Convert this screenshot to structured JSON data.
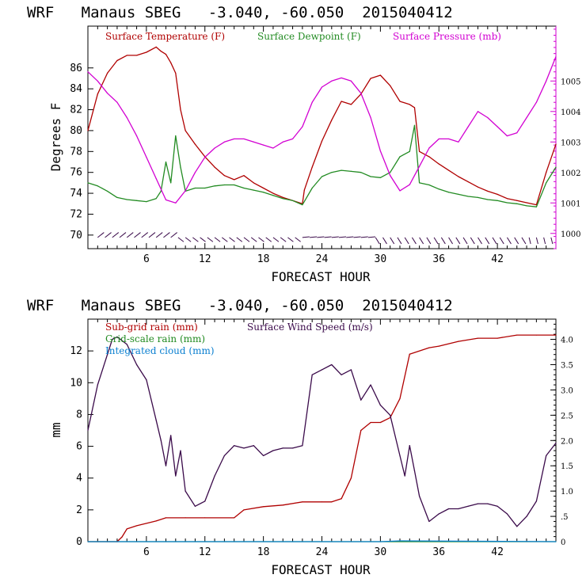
{
  "chart_data": [
    {
      "type": "line",
      "title": "WRF   Manaus SBEG   -3.040, -60.050  2015040412",
      "xlabel": "FORECAST HOUR",
      "ylabel": "Degrees F",
      "xlim": [
        0,
        48
      ],
      "ylim": [
        68.7,
        90
      ],
      "y2lim": [
        999.5,
        1006.8
      ],
      "xticks": [
        6,
        12,
        18,
        24,
        30,
        36,
        42
      ],
      "xtick_labels": [
        "6",
        "12",
        "18",
        "24",
        "30",
        "36",
        "42"
      ],
      "yticks": [
        70,
        72,
        74,
        76,
        78,
        80,
        82,
        84,
        86
      ],
      "ytick_labels": [
        "70",
        "72",
        "74",
        "76",
        "78",
        "80",
        "82",
        "84",
        "86"
      ],
      "y2ticks": [
        1000,
        1001,
        1002,
        1003,
        1004,
        1005
      ],
      "y2tick_labels": [
        "1000",
        "1001",
        "1002",
        "1003",
        "1004",
        "1005"
      ],
      "wind_barbs_row": "along bottom at ~70 F",
      "series": [
        {
          "name": "Surface Temperature (F)",
          "color": "#b00000",
          "axis": "left",
          "x": [
            0,
            1,
            2,
            3,
            4,
            5,
            6,
            7,
            7.5,
            8,
            8.5,
            9,
            9.5,
            10,
            11,
            12,
            13,
            14,
            15,
            16,
            17,
            18,
            19,
            20,
            21,
            22,
            22.2,
            23,
            24,
            25,
            26,
            27,
            28,
            29,
            30,
            31,
            32,
            33,
            33.5,
            34,
            35,
            36,
            37,
            38,
            39,
            40,
            41,
            42,
            43,
            44,
            45,
            46,
            47,
            48
          ],
          "values": [
            80,
            83.5,
            85.5,
            86.7,
            87.2,
            87.2,
            87.5,
            88,
            87.6,
            87.3,
            86.5,
            85.5,
            82,
            80,
            78.7,
            77.5,
            76.5,
            75.7,
            75.3,
            75.7,
            75,
            74.5,
            74,
            73.6,
            73.3,
            73,
            74.3,
            76.5,
            79,
            81,
            82.8,
            82.5,
            83.5,
            85,
            85.3,
            84.3,
            82.8,
            82.5,
            82.2,
            78,
            77.5,
            76.8,
            76.2,
            75.6,
            75.1,
            74.6,
            74.2,
            73.9,
            73.5,
            73.3,
            73.1,
            72.9,
            76,
            78.7
          ]
        },
        {
          "name": "Surface Dewpoint (F)",
          "color": "#228b22",
          "axis": "left",
          "x": [
            0,
            1,
            2,
            3,
            4,
            5,
            6,
            7,
            7.5,
            8,
            8.5,
            9,
            9.5,
            10,
            11,
            12,
            13,
            14,
            15,
            16,
            17,
            18,
            19,
            20,
            21,
            22,
            23,
            24,
            25,
            26,
            27,
            28,
            29,
            30,
            31,
            32,
            33,
            33.5,
            34,
            35,
            36,
            37,
            38,
            39,
            40,
            41,
            42,
            43,
            44,
            45,
            46,
            47,
            48
          ],
          "values": [
            75,
            74.7,
            74.2,
            73.6,
            73.4,
            73.3,
            73.2,
            73.5,
            74.2,
            77,
            75,
            79.5,
            76.5,
            74.2,
            74.5,
            74.5,
            74.7,
            74.8,
            74.8,
            74.5,
            74.3,
            74.1,
            73.8,
            73.5,
            73.3,
            72.9,
            74.5,
            75.6,
            76,
            76.2,
            76.1,
            76,
            75.6,
            75.5,
            76,
            77.5,
            78,
            80.5,
            75,
            74.8,
            74.4,
            74.1,
            73.9,
            73.7,
            73.6,
            73.4,
            73.3,
            73.1,
            73,
            72.8,
            72.7,
            75,
            76.5
          ]
        },
        {
          "name": "Surface Pressure (mb)",
          "color": "#d200d2",
          "axis": "right",
          "x": [
            0,
            1,
            2,
            3,
            4,
            5,
            6,
            7,
            8,
            9,
            10,
            11,
            12,
            13,
            14,
            15,
            16,
            17,
            18,
            19,
            20,
            21,
            22,
            23,
            24,
            25,
            26,
            27,
            28,
            29,
            30,
            31,
            32,
            33,
            34,
            35,
            36,
            37,
            38,
            39,
            40,
            41,
            42,
            43,
            44,
            45,
            46,
            47,
            48
          ],
          "values": [
            1005.3,
            1005,
            1004.6,
            1004.3,
            1003.8,
            1003.2,
            1002.5,
            1001.8,
            1001.1,
            1001,
            1001.4,
            1002,
            1002.5,
            1002.8,
            1003,
            1003.1,
            1003.1,
            1003,
            1002.9,
            1002.8,
            1003,
            1003.1,
            1003.5,
            1004.3,
            1004.8,
            1005,
            1005.1,
            1005,
            1004.6,
            1003.8,
            1002.7,
            1001.9,
            1001.4,
            1001.6,
            1002.2,
            1002.8,
            1003.1,
            1003.1,
            1003,
            1003.5,
            1004,
            1003.8,
            1003.5,
            1003.2,
            1003.3,
            1003.8,
            1004.3,
            1005,
            1005.8
          ]
        }
      ]
    },
    {
      "type": "line",
      "title": "WRF   Manaus SBEG   -3.040, -60.050  2015040412",
      "xlabel": "FORECAST HOUR",
      "ylabel": "mm",
      "xlim": [
        0,
        48
      ],
      "ylim": [
        0,
        14
      ],
      "y2lim": [
        0,
        4.4
      ],
      "xticks": [
        6,
        12,
        18,
        24,
        30,
        36,
        42
      ],
      "xtick_labels": [
        "6",
        "12",
        "18",
        "24",
        "30",
        "36",
        "42"
      ],
      "yticks": [
        0,
        2,
        4,
        6,
        8,
        10,
        12
      ],
      "ytick_labels": [
        "0",
        "2",
        "4",
        "6",
        "8",
        "10",
        "12"
      ],
      "y2ticks": [
        0,
        0.5,
        1,
        1.5,
        2,
        2.5,
        3,
        3.5,
        4
      ],
      "y2tick_labels": [
        "0",
        ".5",
        "1.0",
        "1.5",
        "2.0",
        "2.5",
        "3.0",
        "3.5",
        "4.0"
      ],
      "series": [
        {
          "name": "Sub-grid rain (mm)",
          "color": "#b00000",
          "axis": "left",
          "x": [
            0,
            2,
            3,
            3.5,
            4,
            5,
            7,
            8,
            10,
            12,
            15,
            16,
            18,
            20,
            22,
            24,
            25,
            26,
            27,
            28,
            29,
            30,
            31,
            32,
            33,
            35,
            36,
            38,
            40,
            42,
            44,
            46,
            48
          ],
          "values": [
            0,
            0,
            0,
            0.3,
            0.8,
            1,
            1.3,
            1.5,
            1.5,
            1.5,
            1.5,
            2,
            2.2,
            2.3,
            2.5,
            2.5,
            2.5,
            2.7,
            4,
            7,
            7.5,
            7.5,
            7.8,
            9,
            11.8,
            12.2,
            12.3,
            12.6,
            12.8,
            12.8,
            13,
            13,
            13
          ]
        },
        {
          "name": "Grid-scale rain (mm)",
          "color": "#228b22",
          "axis": "left",
          "x": [
            0,
            48
          ],
          "values": [
            0,
            0
          ]
        },
        {
          "name": "Integrated cloud (mm)",
          "color": "#0a7fd0",
          "axis": "left",
          "x": [
            0,
            30,
            32,
            48
          ],
          "values": [
            0,
            0,
            0.05,
            0
          ]
        },
        {
          "name": "Surface Wind Speed (m/s)",
          "color": "#3a0a4a",
          "axis": "right",
          "x": [
            0,
            1,
            2,
            2.5,
            3,
            4,
            5,
            6,
            7,
            7.5,
            8,
            8.5,
            9,
            9.5,
            10,
            11,
            12,
            13,
            14,
            15,
            16,
            17,
            18,
            19,
            20,
            21,
            22,
            23,
            24,
            25,
            26,
            27,
            28,
            29,
            30,
            31,
            32,
            32.5,
            33,
            33.5,
            34,
            35,
            36,
            37,
            38,
            39,
            40,
            41,
            42,
            43,
            44,
            45,
            46,
            47,
            48
          ],
          "values": [
            2.2,
            3.1,
            3.7,
            4,
            4.05,
            3.9,
            3.5,
            3.2,
            2.4,
            2,
            1.5,
            2.1,
            1.3,
            1.8,
            1,
            0.7,
            0.8,
            1.3,
            1.7,
            1.9,
            1.85,
            1.9,
            1.7,
            1.8,
            1.85,
            1.85,
            1.9,
            3.3,
            3.4,
            3.5,
            3.3,
            3.4,
            2.8,
            3.1,
            2.7,
            2.5,
            1.7,
            1.3,
            1.9,
            1.4,
            0.9,
            0.4,
            0.55,
            0.65,
            0.65,
            0.7,
            0.75,
            0.75,
            0.7,
            0.55,
            0.3,
            0.5,
            0.8,
            1.7,
            1.95
          ]
        }
      ]
    }
  ]
}
